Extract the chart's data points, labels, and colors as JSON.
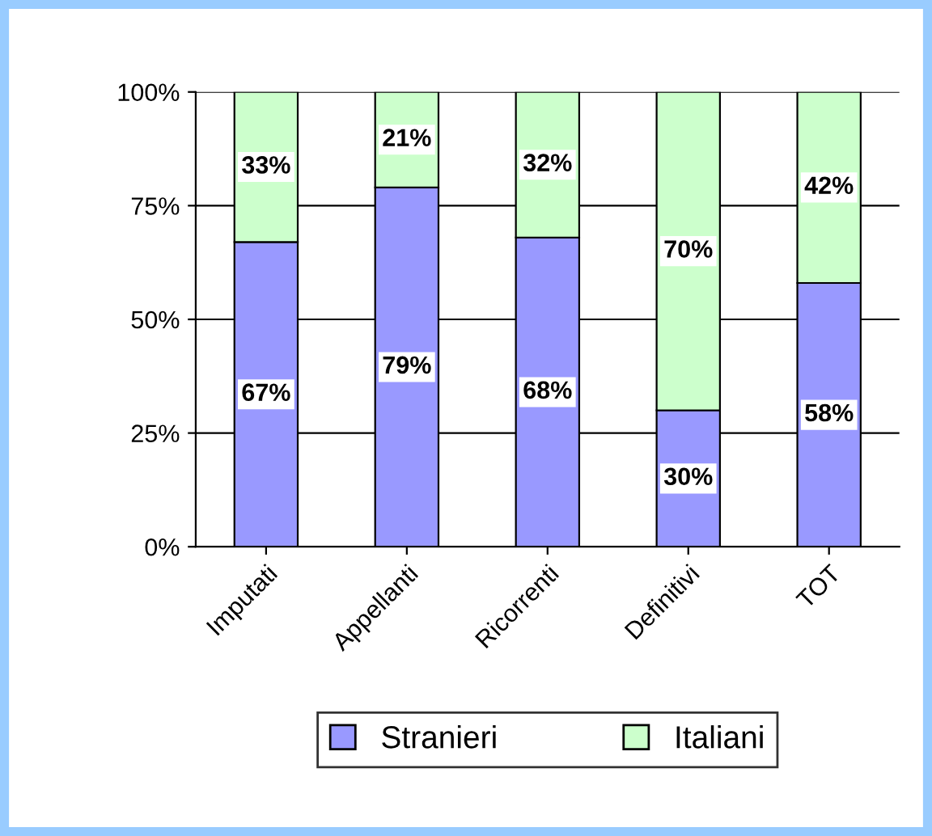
{
  "chart_data": {
    "type": "bar",
    "stacked": true,
    "categories": [
      "Imputati",
      "Appellanti",
      "Ricorrenti",
      "Definitivi",
      "TOT"
    ],
    "series": [
      {
        "name": "Stranieri",
        "color": "#9999ff",
        "values": [
          67,
          79,
          68,
          30,
          58
        ],
        "value_labels": [
          "67%",
          "79%",
          "68%",
          "30%",
          "58%"
        ]
      },
      {
        "name": "Italiani",
        "color": "#ccffcc",
        "values": [
          33,
          21,
          32,
          70,
          42
        ],
        "value_labels": [
          "33%",
          "21%",
          "32%",
          "70%",
          "42%"
        ]
      }
    ],
    "ylim": [
      0,
      100
    ],
    "yticks": [
      {
        "value": 0,
        "label": "0%"
      },
      {
        "value": 25,
        "label": "25%"
      },
      {
        "value": 50,
        "label": "50%"
      },
      {
        "value": 75,
        "label": "75%"
      },
      {
        "value": 100,
        "label": "100%"
      }
    ],
    "grid": "y",
    "legend": "bottom"
  }
}
